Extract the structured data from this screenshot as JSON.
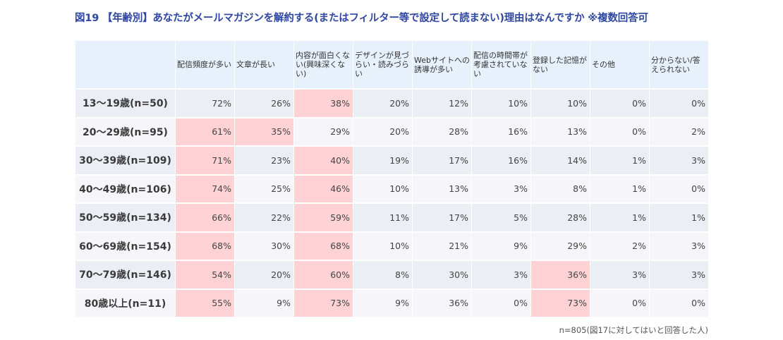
{
  "title": "図19 【年齢別】あなたがメールマガジンを解約する(またはフィルター等で設定して読まない)理由はなんですか ※複数回答可",
  "note": "n=805(図17に対してはいと回答した人)",
  "colors": {
    "title": "#2f46a2",
    "header_bg": "#e6f1fb",
    "highlight": "#ffd3d6",
    "row_odd": "#eceef6",
    "row_even": "#f6f6fa"
  },
  "chart_data": {
    "type": "table",
    "columns": [
      "配信頻度が多い",
      "文章が長い",
      "内容が面白くない(興味深くない)",
      "デザインが見づらい・読みづらい",
      "Webサイトへの誘導が多い",
      "配信の時間帯が考慮されていない",
      "登録した記憶がない",
      "その他",
      "分からない/答えられない"
    ],
    "rows": [
      {
        "label": "13〜19歳(n=50)",
        "values": [
          "72%",
          "26%",
          "38%",
          "20%",
          "12%",
          "10%",
          "10%",
          "0%",
          "0%"
        ]
      },
      {
        "label": "20〜29歳(n=95)",
        "values": [
          "61%",
          "35%",
          "29%",
          "20%",
          "28%",
          "16%",
          "13%",
          "0%",
          "2%"
        ]
      },
      {
        "label": "30〜39歳(n=109)",
        "values": [
          "71%",
          "23%",
          "40%",
          "19%",
          "17%",
          "16%",
          "14%",
          "1%",
          "3%"
        ]
      },
      {
        "label": "40〜49歳(n=106)",
        "values": [
          "74%",
          "25%",
          "46%",
          "10%",
          "13%",
          "3%",
          "8%",
          "1%",
          "0%"
        ]
      },
      {
        "label": "50〜59歳(n=134)",
        "values": [
          "66%",
          "22%",
          "59%",
          "11%",
          "17%",
          "5%",
          "28%",
          "1%",
          "1%"
        ]
      },
      {
        "label": "60〜69歳(n=154)",
        "values": [
          "68%",
          "30%",
          "68%",
          "10%",
          "21%",
          "9%",
          "29%",
          "2%",
          "3%"
        ]
      },
      {
        "label": "70〜79歳(n=146)",
        "values": [
          "54%",
          "20%",
          "60%",
          "8%",
          "30%",
          "3%",
          "36%",
          "3%",
          "3%"
        ]
      },
      {
        "label": "80歳以上(n=11)",
        "values": [
          "55%",
          "9%",
          "73%",
          "9%",
          "36%",
          "0%",
          "73%",
          "0%",
          "0%"
        ]
      }
    ],
    "highlights": [
      [
        0,
        2
      ],
      [
        1,
        0
      ],
      [
        1,
        1
      ],
      [
        2,
        0
      ],
      [
        2,
        2
      ],
      [
        3,
        0
      ],
      [
        3,
        2
      ],
      [
        4,
        0
      ],
      [
        4,
        2
      ],
      [
        5,
        0
      ],
      [
        5,
        2
      ],
      [
        6,
        0
      ],
      [
        6,
        2
      ],
      [
        6,
        6
      ],
      [
        7,
        0
      ],
      [
        7,
        2
      ],
      [
        7,
        6
      ]
    ]
  }
}
